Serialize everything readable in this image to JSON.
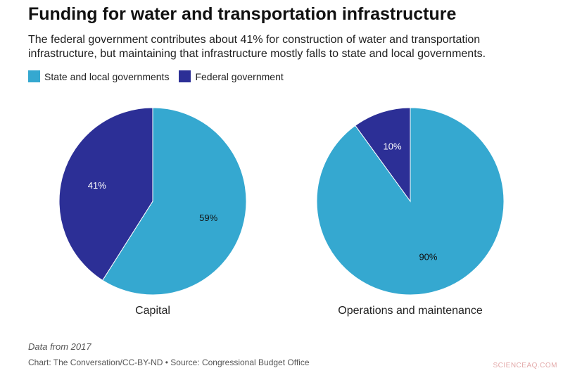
{
  "title": "Funding for water and transportation infrastructure",
  "subtitle": "The federal government contributes about 41% for construction of water and transportation infrastructure, but maintaining that infrastructure mostly falls to state and local governments.",
  "legend": [
    {
      "label": "State and local governments",
      "color": "#35a8d0"
    },
    {
      "label": "Federal government",
      "color": "#2c2f96"
    }
  ],
  "chart_data": [
    {
      "type": "pie",
      "title": "Capital",
      "slices": [
        {
          "label": "State and local governments",
          "value": 59,
          "display": "59%",
          "color": "#35a8d0"
        },
        {
          "label": "Federal government",
          "value": 41,
          "display": "41%",
          "color": "#2c2f96"
        }
      ]
    },
    {
      "type": "pie",
      "title": "Operations and maintenance",
      "slices": [
        {
          "label": "State and local governments",
          "value": 90,
          "display": "90%",
          "color": "#35a8d0"
        },
        {
          "label": "Federal government",
          "value": 10,
          "display": "10%",
          "color": "#2c2f96"
        }
      ]
    }
  ],
  "note": "Data from 2017",
  "source": "Chart: The Conversation/CC-BY-ND • Source: Congressional Budget Office",
  "watermark": "SCIENCEAQ.COM"
}
